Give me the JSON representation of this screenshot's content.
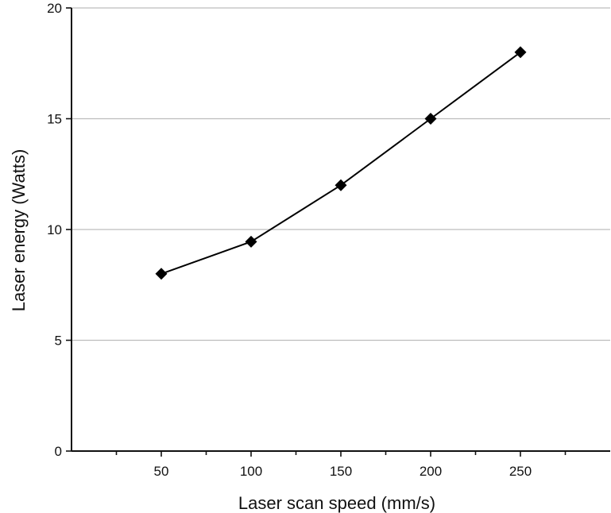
{
  "chart_data": {
    "type": "line",
    "title": "",
    "xlabel": "Laser scan speed (mm/s)",
    "ylabel": "Laser energy (Watts)",
    "x": [
      50,
      100,
      150,
      200,
      250
    ],
    "series": [
      {
        "values": [
          8.0,
          9.45,
          12.0,
          15.0,
          18.0
        ]
      }
    ],
    "xlim": [
      0,
      300
    ],
    "ylim": [
      0,
      20
    ],
    "x_ticks": [
      50,
      100,
      150,
      200,
      250
    ],
    "y_ticks": [
      0,
      5,
      10,
      15,
      20
    ],
    "x_tick_labels": [
      "50",
      "100",
      "150",
      "200",
      "250"
    ],
    "y_tick_labels": [
      "0",
      "5",
      "10",
      "15",
      "20"
    ],
    "grid": "horizontal",
    "marker": "diamond",
    "line_color": "#000000",
    "grid_color": "#bdbdbd"
  }
}
